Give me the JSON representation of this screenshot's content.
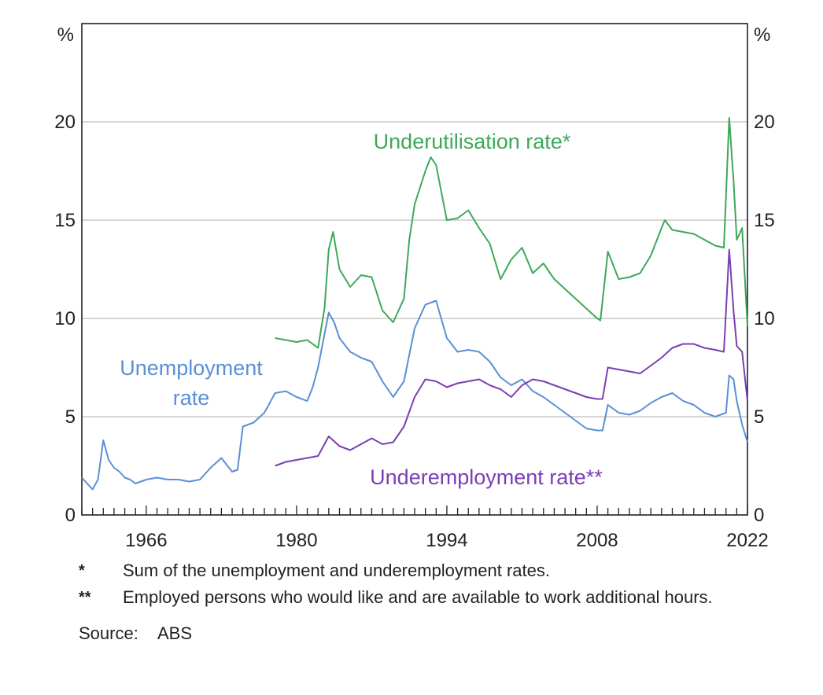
{
  "chart_data": {
    "type": "line",
    "y_unit_left": "%",
    "y_unit_right": "%",
    "ylim": [
      0,
      25
    ],
    "yticks": [
      0,
      5,
      10,
      15,
      20
    ],
    "xlim": [
      1960,
      2022
    ],
    "xticks": [
      1966,
      1980,
      1994,
      2008,
      2022
    ],
    "grid": true,
    "series": [
      {
        "name": "Unemployment rate",
        "label_lines": [
          "Unemployment",
          "rate"
        ],
        "color": "#5b8fd6",
        "x": [
          1960.0,
          1960.5,
          1961.0,
          1961.5,
          1962.0,
          1962.5,
          1963.0,
          1963.5,
          1964.0,
          1964.5,
          1965.0,
          1966.0,
          1967.0,
          1968.0,
          1969.0,
          1970.0,
          1971.0,
          1972.0,
          1973.0,
          1974.0,
          1974.5,
          1975.0,
          1976.0,
          1977.0,
          1978.0,
          1979.0,
          1980.0,
          1981.0,
          1981.5,
          1982.0,
          1983.0,
          1983.5,
          1984.0,
          1985.0,
          1986.0,
          1987.0,
          1988.0,
          1989.0,
          1990.0,
          1991.0,
          1992.0,
          1993.0,
          1994.0,
          1995.0,
          1996.0,
          1997.0,
          1998.0,
          1999.0,
          2000.0,
          2001.0,
          2002.0,
          2003.0,
          2004.0,
          2005.0,
          2006.0,
          2007.0,
          2008.0,
          2008.5,
          2009.0,
          2010.0,
          2011.0,
          2012.0,
          2013.0,
          2014.0,
          2015.0,
          2016.0,
          2017.0,
          2018.0,
          2019.0,
          2020.0,
          2020.3,
          2020.7,
          2021.0,
          2021.5,
          2022.0
        ],
        "y": [
          1.9,
          1.6,
          1.3,
          1.8,
          3.8,
          2.8,
          2.4,
          2.2,
          1.9,
          1.8,
          1.6,
          1.8,
          1.9,
          1.8,
          1.8,
          1.7,
          1.8,
          2.4,
          2.9,
          2.2,
          2.3,
          4.5,
          4.7,
          5.2,
          6.2,
          6.3,
          6.0,
          5.8,
          6.5,
          7.5,
          10.3,
          9.8,
          9.0,
          8.3,
          8.0,
          7.8,
          6.8,
          6.0,
          6.8,
          9.5,
          10.7,
          10.9,
          9.0,
          8.3,
          8.4,
          8.3,
          7.8,
          7.0,
          6.6,
          6.9,
          6.3,
          6.0,
          5.6,
          5.2,
          4.8,
          4.4,
          4.3,
          4.3,
          5.6,
          5.2,
          5.1,
          5.3,
          5.7,
          6.0,
          6.2,
          5.8,
          5.6,
          5.2,
          5.0,
          5.2,
          7.1,
          6.9,
          5.8,
          4.6,
          3.7
        ]
      },
      {
        "name": "Underemployment rate**",
        "color": "#7a3fb3",
        "x": [
          1978.0,
          1979.0,
          1980.0,
          1981.0,
          1982.0,
          1983.0,
          1984.0,
          1985.0,
          1986.0,
          1987.0,
          1988.0,
          1989.0,
          1990.0,
          1991.0,
          1992.0,
          1993.0,
          1994.0,
          1995.0,
          1996.0,
          1997.0,
          1998.0,
          1999.0,
          2000.0,
          2001.0,
          2002.0,
          2003.0,
          2004.0,
          2005.0,
          2006.0,
          2007.0,
          2008.0,
          2008.5,
          2009.0,
          2010.0,
          2011.0,
          2012.0,
          2013.0,
          2014.0,
          2015.0,
          2016.0,
          2017.0,
          2018.0,
          2019.0,
          2019.8,
          2020.3,
          2020.7,
          2021.0,
          2021.5,
          2022.0
        ],
        "y": [
          2.5,
          2.7,
          2.8,
          2.9,
          3.0,
          4.0,
          3.5,
          3.3,
          3.6,
          3.9,
          3.6,
          3.7,
          4.5,
          6.0,
          6.9,
          6.8,
          6.5,
          6.7,
          6.8,
          6.9,
          6.6,
          6.4,
          6.0,
          6.6,
          6.9,
          6.8,
          6.6,
          6.4,
          6.2,
          6.0,
          5.9,
          5.9,
          7.5,
          7.4,
          7.3,
          7.2,
          7.6,
          8.0,
          8.5,
          8.7,
          8.7,
          8.5,
          8.4,
          8.3,
          13.5,
          10.4,
          8.6,
          8.3,
          5.8
        ]
      },
      {
        "name": "Underutilisation rate*",
        "color": "#3ea85a",
        "x": [
          1978.0,
          1979.0,
          1980.0,
          1981.0,
          1982.0,
          1982.6,
          1983.0,
          1983.4,
          1984.0,
          1985.0,
          1986.0,
          1987.0,
          1988.0,
          1989.0,
          1990.0,
          1990.5,
          1991.0,
          1992.0,
          1992.5,
          1993.0,
          1994.0,
          1995.0,
          1996.0,
          1997.0,
          1998.0,
          1999.0,
          2000.0,
          2001.0,
          2002.0,
          2003.0,
          2004.0,
          2005.0,
          2006.0,
          2007.0,
          2008.0,
          2008.3,
          2009.0,
          2010.0,
          2011.0,
          2012.0,
          2013.0,
          2014.0,
          2014.3,
          2015.0,
          2016.0,
          2017.0,
          2018.0,
          2019.0,
          2019.8,
          2020.3,
          2020.7,
          2021.0,
          2021.5,
          2022.0
        ],
        "y": [
          9.0,
          8.9,
          8.8,
          8.9,
          8.5,
          10.5,
          13.5,
          14.4,
          12.5,
          11.6,
          12.2,
          12.1,
          10.4,
          9.8,
          11.0,
          14.0,
          15.8,
          17.5,
          18.2,
          17.8,
          15.0,
          15.1,
          15.5,
          14.6,
          13.8,
          12.0,
          13.0,
          13.6,
          12.3,
          12.8,
          12.0,
          11.5,
          11.0,
          10.5,
          10.0,
          9.9,
          13.4,
          12.0,
          12.1,
          12.3,
          13.2,
          14.6,
          15.0,
          14.5,
          14.4,
          14.3,
          14.0,
          13.7,
          13.6,
          20.2,
          17.0,
          14.0,
          14.6,
          9.6
        ]
      }
    ],
    "annotations": {
      "unemployment_label": [
        "Unemployment",
        "rate"
      ],
      "underutilisation_label": "Underutilisation rate*",
      "underemployment_label": "Underemployment rate**"
    }
  },
  "notes": [
    {
      "mark": "*",
      "text": "Sum of the unemployment and underemployment rates."
    },
    {
      "mark": "**",
      "text": "Employed persons who would like and are available to work additional hours."
    }
  ],
  "source": {
    "label": "Source:",
    "value": "ABS"
  }
}
